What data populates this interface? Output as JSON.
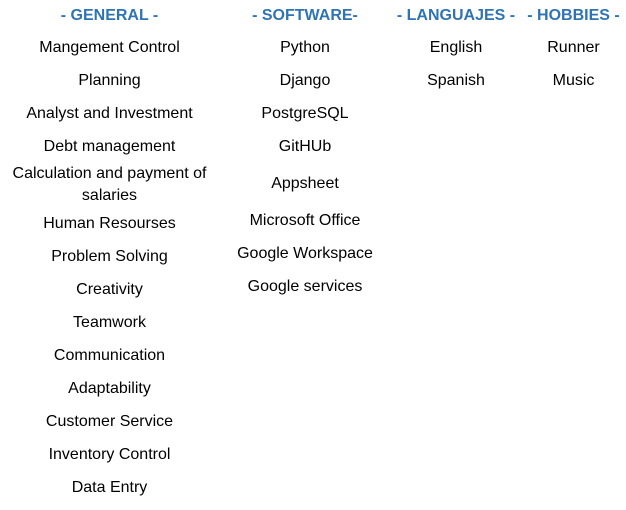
{
  "theme": {
    "header_color": "#2e74b5",
    "text_color": "#000000",
    "background": "#ffffff"
  },
  "columns": [
    {
      "header": "- GENERAL -",
      "items": [
        "Mangement Control",
        "Planning",
        "Analyst and Investment",
        "Debt management",
        "Calculation and payment of salaries",
        "Human Resourses",
        "Problem Solving",
        "Creativity",
        "Teamwork",
        "Communication",
        "Adaptability",
        "Customer Service",
        "Inventory Control",
        "Data Entry"
      ]
    },
    {
      "header": "- SOFTWARE-",
      "items": [
        "Python",
        "Django",
        "PostgreSQL",
        "GitHUb",
        "Appsheet",
        "Microsoft Office",
        "Google Workspace",
        "Google services"
      ]
    },
    {
      "header": "- LANGUAJES -",
      "items": [
        "English",
        "Spanish"
      ]
    },
    {
      "header": "- HOBBIES -",
      "items": [
        "Runner",
        "Music"
      ]
    }
  ]
}
